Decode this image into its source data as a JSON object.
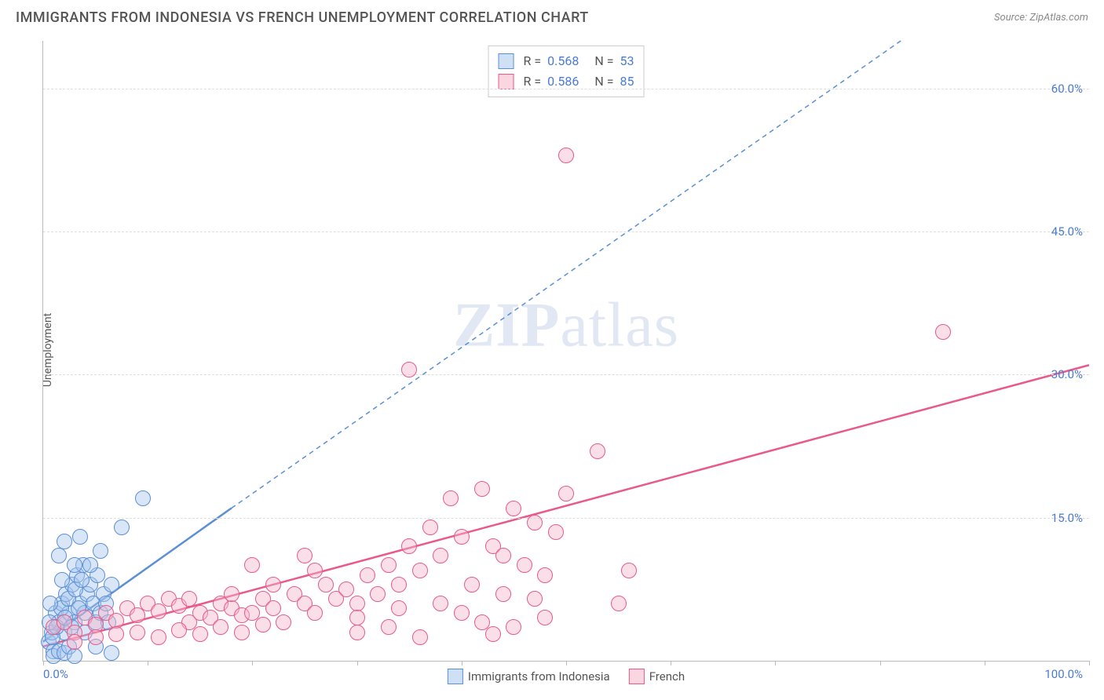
{
  "title": "IMMIGRANTS FROM INDONESIA VS FRENCH UNEMPLOYMENT CORRELATION CHART",
  "source": "Source: ZipAtlas.com",
  "watermark": {
    "zip": "ZIP",
    "atlas": "atlas"
  },
  "chart": {
    "type": "scatter",
    "background_color": "#ffffff",
    "grid_color": "#dddddd",
    "axis_color": "#bbbbbb",
    "tick_label_color": "#4a7bd0",
    "label_fontsize": 14,
    "tick_fontsize": 15,
    "ylabel": "Unemployment",
    "xlim": [
      0,
      100
    ],
    "ylim": [
      0,
      65
    ],
    "xtick_positions": [
      0,
      10,
      20,
      30,
      40,
      50,
      60,
      70,
      80,
      90,
      100
    ],
    "xtick_labels_shown": {
      "0": "0.0%",
      "100": "100.0%"
    },
    "ytick_positions": [
      15,
      30,
      45,
      60
    ],
    "ytick_labels": {
      "15": "15.0%",
      "30": "30.0%",
      "45": "45.0%",
      "60": "60.0%"
    },
    "marker_radius": 9,
    "marker_border_width": 1.5,
    "marker_fill_opacity": 0.28,
    "series": [
      {
        "key": "indonesia",
        "label": "Immigrants from Indonesia",
        "color": "#5a8fd6",
        "fill": "#a8c6ec",
        "R": "0.568",
        "N": "53",
        "trend": {
          "solid": {
            "x1": 0,
            "y1": 2.0,
            "x2": 18,
            "y2": 16.0,
            "width": 2.5
          },
          "dashed": {
            "x1": 18,
            "y1": 16.0,
            "x2": 82,
            "y2": 65.0,
            "width": 1.5,
            "dash": "6,5"
          }
        },
        "points": [
          [
            0.5,
            2
          ],
          [
            0.8,
            3
          ],
          [
            1.0,
            1
          ],
          [
            1.2,
            5
          ],
          [
            1.5,
            4
          ],
          [
            1.8,
            6
          ],
          [
            2.0,
            3
          ],
          [
            2.2,
            7
          ],
          [
            2.5,
            5
          ],
          [
            2.8,
            8
          ],
          [
            3.0,
            4
          ],
          [
            3.2,
            9
          ],
          [
            3.5,
            6
          ],
          [
            3.8,
            10
          ],
          [
            4.0,
            5
          ],
          [
            4.2,
            7
          ],
          [
            4.5,
            8
          ],
          [
            4.8,
            6
          ],
          [
            5.0,
            4
          ],
          [
            5.2,
            9
          ],
          [
            5.5,
            5
          ],
          [
            5.8,
            7
          ],
          [
            6.0,
            6
          ],
          [
            6.2,
            4
          ],
          [
            6.5,
            8
          ],
          [
            1.0,
            0.5
          ],
          [
            1.5,
            1
          ],
          [
            2.0,
            0.8
          ],
          [
            2.5,
            1.5
          ],
          [
            3.0,
            0.5
          ],
          [
            0.6,
            4
          ],
          [
            0.9,
            2.5
          ],
          [
            1.3,
            3.5
          ],
          [
            1.7,
            5.5
          ],
          [
            2.1,
            4.5
          ],
          [
            2.4,
            6.5
          ],
          [
            2.7,
            3.5
          ],
          [
            3.1,
            7.5
          ],
          [
            3.4,
            5.5
          ],
          [
            3.7,
            8.5
          ],
          [
            1.5,
            11
          ],
          [
            2.0,
            12.5
          ],
          [
            3.5,
            13
          ],
          [
            4.5,
            10
          ],
          [
            5.5,
            11.5
          ],
          [
            7.5,
            14
          ],
          [
            9.5,
            17
          ],
          [
            5.0,
            1.5
          ],
          [
            6.5,
            0.8
          ],
          [
            4.0,
            3
          ],
          [
            3.0,
            10
          ],
          [
            1.8,
            8.5
          ],
          [
            0.7,
            6
          ]
        ]
      },
      {
        "key": "french",
        "label": "French",
        "color": "#e85a8a",
        "fill": "#f5b5c9",
        "R": "0.586",
        "N": "85",
        "trend": {
          "solid": {
            "x1": 0,
            "y1": 1.5,
            "x2": 100,
            "y2": 31.0,
            "width": 2.5
          }
        },
        "points": [
          [
            1,
            3.5
          ],
          [
            2,
            4
          ],
          [
            3,
            3
          ],
          [
            4,
            4.5
          ],
          [
            5,
            3.8
          ],
          [
            6,
            5
          ],
          [
            7,
            4.2
          ],
          [
            8,
            5.5
          ],
          [
            9,
            4.8
          ],
          [
            10,
            6
          ],
          [
            11,
            5.2
          ],
          [
            12,
            6.5
          ],
          [
            13,
            5.8
          ],
          [
            14,
            4
          ],
          [
            15,
            5
          ],
          [
            16,
            4.5
          ],
          [
            17,
            6
          ],
          [
            18,
            5.5
          ],
          [
            19,
            4.8
          ],
          [
            20,
            5
          ],
          [
            21,
            6.5
          ],
          [
            22,
            5.5
          ],
          [
            23,
            4
          ],
          [
            24,
            7
          ],
          [
            25,
            6
          ],
          [
            26,
            5
          ],
          [
            27,
            8
          ],
          [
            28,
            6.5
          ],
          [
            29,
            7.5
          ],
          [
            30,
            6
          ],
          [
            31,
            9
          ],
          [
            32,
            7
          ],
          [
            33,
            10
          ],
          [
            34,
            8
          ],
          [
            35,
            12
          ],
          [
            36,
            9.5
          ],
          [
            37,
            14
          ],
          [
            38,
            11
          ],
          [
            39,
            17
          ],
          [
            40,
            13
          ],
          [
            41,
            8
          ],
          [
            42,
            18
          ],
          [
            43,
            12
          ],
          [
            44,
            7
          ],
          [
            45,
            16
          ],
          [
            46,
            10
          ],
          [
            47,
            14.5
          ],
          [
            48,
            9
          ],
          [
            49,
            13.5
          ],
          [
            50,
            17.5
          ],
          [
            3,
            2
          ],
          [
            5,
            2.5
          ],
          [
            7,
            2.8
          ],
          [
            9,
            3
          ],
          [
            11,
            2.5
          ],
          [
            13,
            3.2
          ],
          [
            15,
            2.8
          ],
          [
            17,
            3.5
          ],
          [
            19,
            3
          ],
          [
            21,
            3.8
          ],
          [
            14,
            6.5
          ],
          [
            18,
            7
          ],
          [
            22,
            8
          ],
          [
            26,
            9.5
          ],
          [
            30,
            4.5
          ],
          [
            34,
            5.5
          ],
          [
            38,
            6
          ],
          [
            42,
            4
          ],
          [
            20,
            10
          ],
          [
            25,
            11
          ],
          [
            35,
            30.5
          ],
          [
            40,
            5
          ],
          [
            43,
            2.8
          ],
          [
            45,
            3.5
          ],
          [
            47,
            6.5
          ],
          [
            30,
            3
          ],
          [
            33,
            3.5
          ],
          [
            36,
            2.5
          ],
          [
            48,
            4.5
          ],
          [
            44,
            11
          ],
          [
            53,
            22
          ],
          [
            55,
            6
          ],
          [
            56,
            9.5
          ],
          [
            50,
            53
          ],
          [
            86,
            34.5
          ]
        ]
      }
    ]
  }
}
